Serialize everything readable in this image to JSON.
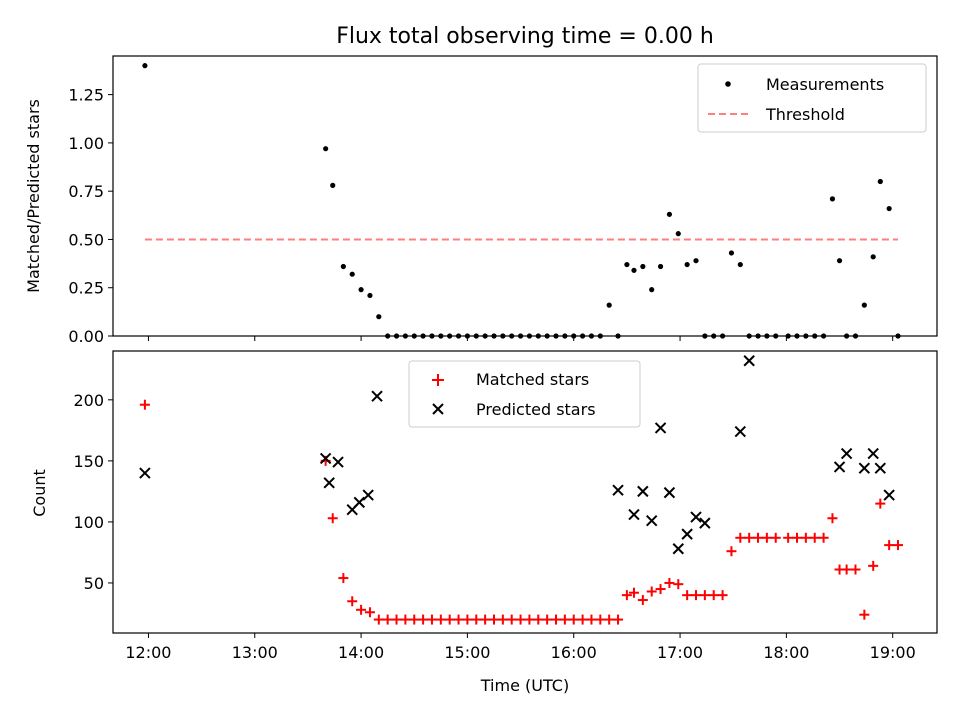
{
  "chart_data": [
    {
      "type": "scatter",
      "title": "Flux total observing time = 0.00 h",
      "ylabel": "Matched/Predicted stars",
      "xlim": [
        "11:40",
        "19:25"
      ],
      "ylim": [
        0,
        1.45
      ],
      "yticks": [
        "0.00",
        "0.25",
        "0.50",
        "0.75",
        "1.00",
        "1.25"
      ],
      "legend_position": "upper right",
      "grid": false,
      "series": [
        {
          "name": "Measurements",
          "marker": "dot",
          "color": "#000000",
          "x": [
            "11:58",
            "13:40",
            "13:44",
            "13:50",
            "13:55",
            "14:00",
            "14:05",
            "14:10",
            "14:15",
            "14:20",
            "14:25",
            "14:30",
            "14:35",
            "14:40",
            "14:45",
            "14:50",
            "14:55",
            "15:00",
            "15:05",
            "15:10",
            "15:15",
            "15:20",
            "15:25",
            "15:30",
            "15:35",
            "15:40",
            "15:45",
            "15:50",
            "15:55",
            "16:00",
            "16:05",
            "16:10",
            "16:15",
            "16:20",
            "16:25",
            "16:30",
            "16:34",
            "16:39",
            "16:44",
            "16:49",
            "16:54",
            "16:59",
            "17:04",
            "17:09",
            "17:14",
            "17:19",
            "17:24",
            "17:29",
            "17:34",
            "17:39",
            "17:44",
            "17:49",
            "17:54",
            "18:01",
            "18:06",
            "18:11",
            "18:16",
            "18:21",
            "18:26",
            "18:30",
            "18:34",
            "18:39",
            "18:44",
            "18:49",
            "18:53",
            "18:58",
            "19:03"
          ],
          "y": [
            1.4,
            0.97,
            0.78,
            0.36,
            0.32,
            0.24,
            0.21,
            0.1,
            0,
            0,
            0,
            0,
            0,
            0,
            0,
            0,
            0,
            0,
            0,
            0,
            0,
            0,
            0,
            0,
            0,
            0,
            0,
            0,
            0,
            0,
            0,
            0,
            0,
            0.16,
            0,
            0.37,
            0.34,
            0.36,
            0.24,
            0.36,
            0.63,
            0.53,
            0.37,
            0.39,
            0,
            0,
            0,
            0.43,
            0.37,
            0,
            0,
            0,
            0,
            0,
            0,
            0,
            0,
            0,
            0.71,
            0.39,
            0,
            0,
            0.16,
            0.41,
            0.8,
            0.66,
            0
          ]
        },
        {
          "name": "Threshold",
          "type": "line",
          "style": "dashed",
          "color": "#ff7f7f",
          "x": [
            "11:58",
            "19:03"
          ],
          "y": [
            0.5,
            0.5
          ]
        }
      ]
    },
    {
      "type": "scatter",
      "xlabel": "Time (UTC)",
      "ylabel": "Count",
      "xlim": [
        "11:40",
        "19:25"
      ],
      "ylim": [
        9,
        240
      ],
      "yticks": [
        "50",
        "100",
        "150",
        "200"
      ],
      "xticks": [
        "12:00",
        "13:00",
        "14:00",
        "15:00",
        "16:00",
        "17:00",
        "18:00",
        "19:00"
      ],
      "legend_position": "upper center",
      "grid": false,
      "series": [
        {
          "name": "Matched stars",
          "marker": "plus",
          "color": "#ff0000",
          "x": [
            "11:58",
            "13:40",
            "13:44",
            "13:50",
            "13:55",
            "14:00",
            "14:05",
            "14:10",
            "14:15",
            "14:20",
            "14:25",
            "14:30",
            "14:35",
            "14:40",
            "14:45",
            "14:50",
            "14:55",
            "15:00",
            "15:05",
            "15:10",
            "15:15",
            "15:20",
            "15:25",
            "15:30",
            "15:35",
            "15:40",
            "15:45",
            "15:50",
            "15:55",
            "16:00",
            "16:05",
            "16:10",
            "16:15",
            "16:20",
            "16:25",
            "16:30",
            "16:34",
            "16:39",
            "16:44",
            "16:49",
            "16:54",
            "16:59",
            "17:04",
            "17:09",
            "17:14",
            "17:19",
            "17:24",
            "17:29",
            "17:34",
            "17:39",
            "17:44",
            "17:49",
            "17:54",
            "18:01",
            "18:06",
            "18:11",
            "18:16",
            "18:21",
            "18:26",
            "18:30",
            "18:34",
            "18:39",
            "18:44",
            "18:49",
            "18:53",
            "18:58",
            "19:03"
          ],
          "y": [
            196,
            150,
            103,
            54,
            35,
            28,
            26,
            20,
            20,
            20,
            20,
            20,
            20,
            20,
            20,
            20,
            20,
            20,
            20,
            20,
            20,
            20,
            20,
            20,
            20,
            20,
            20,
            20,
            20,
            20,
            20,
            20,
            20,
            20,
            20,
            40,
            42,
            36,
            43,
            45,
            50,
            49,
            40,
            40,
            40,
            40,
            40,
            76,
            87,
            87,
            87,
            87,
            87,
            87,
            87,
            87,
            87,
            87,
            103,
            61,
            61,
            61,
            24,
            64,
            115,
            81,
            81
          ]
        },
        {
          "name": "Predicted stars",
          "marker": "x",
          "color": "#000000",
          "x": [
            "11:58",
            "13:40",
            "13:42",
            "13:47",
            "13:55",
            "13:59",
            "14:04",
            "14:09",
            "16:25",
            "16:34",
            "16:39",
            "16:44",
            "16:49",
            "16:54",
            "16:59",
            "17:04",
            "17:09",
            "17:14",
            "17:34",
            "17:39",
            "18:30",
            "18:34",
            "18:44",
            "18:49",
            "18:53",
            "18:58"
          ],
          "y": [
            140,
            152,
            132,
            149,
            110,
            116,
            122,
            203,
            126,
            106,
            125,
            101,
            177,
            124,
            78,
            90,
            104,
            99,
            174,
            232,
            145,
            156,
            144,
            156,
            144,
            122
          ]
        }
      ]
    }
  ]
}
